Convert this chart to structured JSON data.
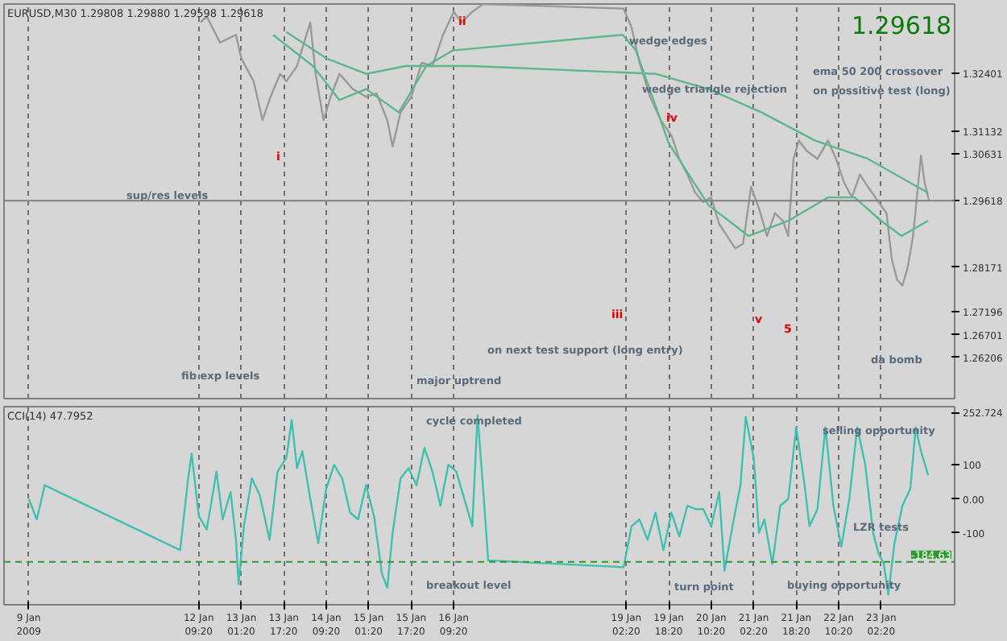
{
  "chart_data": [
    {
      "type": "line",
      "title": "EURUSD,M30  1.29808 1.29880 1.29598 1.29618",
      "xlim": [
        "2009-01-09T08:00",
        "2009-01-24T06:00"
      ],
      "ylim": [
        1.2531,
        1.339
      ],
      "xticks": [
        {
          "value": "2009-01-09T17:20",
          "label": null
        },
        {
          "value": "2009-01-12T09:20",
          "label": null
        },
        {
          "value": "2009-01-13T01:20",
          "label": null
        },
        {
          "value": "2009-01-13T17:20",
          "label": null
        },
        {
          "value": "2009-01-14T09:20",
          "label": null
        },
        {
          "value": "2009-01-15T01:20",
          "label": null
        },
        {
          "value": "2009-01-15T17:20",
          "label": null
        },
        {
          "value": "2009-01-16T09:20",
          "label": null
        },
        {
          "value": "2009-01-19T02:20",
          "label": null
        },
        {
          "value": "2009-01-19T18:20",
          "label": null
        },
        {
          "value": "2009-01-20T10:20",
          "label": null
        },
        {
          "value": "2009-01-21T02:20",
          "label": null
        },
        {
          "value": "2009-01-21T18:20",
          "label": null
        },
        {
          "value": "2009-01-22T10:20",
          "label": null
        },
        {
          "value": "2009-01-23T02:20",
          "label": null
        }
      ],
      "yticks": [
        1.32401,
        1.31132,
        1.30631,
        1.29618,
        1.28171,
        1.27196,
        1.26701,
        1.26206
      ],
      "tick_labels": "y",
      "grid": "x",
      "series": [
        {
          "color": "#9a9a9a",
          "x": [
            "2009-01-12T10:00",
            "2009-01-12T12:20",
            "2009-01-12T17:20",
            "2009-01-12T23:20",
            "2009-01-13T01:20",
            "2009-01-13T06:00",
            "2009-01-13T09:20",
            "2009-01-13T12:20",
            "2009-01-13T16:00",
            "2009-01-13T18:20",
            "2009-01-13T22:20",
            "2009-01-14T01:00",
            "2009-01-14T03:20",
            "2009-01-14T05:20",
            "2009-01-14T08:20",
            "2009-01-14T11:00",
            "2009-01-14T14:20",
            "2009-01-14T19:20",
            "2009-01-15T00:20",
            "2009-01-15T04:20",
            "2009-01-15T08:20",
            "2009-01-15T10:20",
            "2009-01-15T13:20",
            "2009-01-15T17:20",
            "2009-01-15T21:20",
            "2009-01-16T01:20",
            "2009-01-16T05:20",
            "2009-01-16T09:20",
            "2009-01-16T12:20",
            "2009-01-16T16:20",
            "2009-01-16T20:20",
            "2009-01-19T01:20",
            "2009-01-19T04:20",
            "2009-01-19T07:20",
            "2009-01-19T11:20",
            "2009-01-19T15:20",
            "2009-01-19T19:20",
            "2009-01-19T22:20",
            "2009-01-20T01:20",
            "2009-01-20T04:20",
            "2009-01-20T07:20",
            "2009-01-20T10:20",
            "2009-01-20T13:20",
            "2009-01-20T16:20",
            "2009-01-20T19:20",
            "2009-01-20T22:20",
            "2009-01-21T01:20",
            "2009-01-21T04:20",
            "2009-01-21T07:20",
            "2009-01-21T10:20",
            "2009-01-21T13:20",
            "2009-01-21T15:20",
            "2009-01-21T17:20",
            "2009-01-21T19:20",
            "2009-01-21T22:20",
            "2009-01-22T02:20",
            "2009-01-22T06:20",
            "2009-01-22T09:20",
            "2009-01-22T12:20",
            "2009-01-22T15:20",
            "2009-01-22T18:20",
            "2009-01-22T21:20",
            "2009-01-23T01:20",
            "2009-01-23T04:20",
            "2009-01-23T06:20",
            "2009-01-23T08:20",
            "2009-01-23T10:20",
            "2009-01-23T12:20",
            "2009-01-23T14:20",
            "2009-01-23T16:20",
            "2009-01-23T17:20",
            "2009-01-23T18:40",
            "2009-01-23T20:20"
          ],
          "values": [
            1.335,
            1.3363,
            1.3306,
            1.3323,
            1.3272,
            1.3222,
            1.3137,
            1.3188,
            1.3238,
            1.3222,
            1.3255,
            1.3306,
            1.335,
            1.3238,
            1.3137,
            1.3188,
            1.3238,
            1.3205,
            1.3188,
            1.3195,
            1.3137,
            1.308,
            1.3154,
            1.3188,
            1.3262,
            1.3255,
            1.3323,
            1.3373,
            1.335,
            1.3373,
            1.339,
            1.338,
            1.3339,
            1.3262,
            1.3188,
            1.3137,
            1.3104,
            1.3053,
            1.3019,
            1.2979,
            1.2959,
            1.2969,
            1.2911,
            1.2885,
            1.2858,
            1.2868,
            1.2992,
            1.2945,
            1.2885,
            1.2935,
            1.2918,
            1.2885,
            1.3053,
            1.3093,
            1.307,
            1.3053,
            1.3093,
            1.3053,
            1.3002,
            1.2969,
            1.3019,
            1.2992,
            1.2959,
            1.2935,
            1.2834,
            1.279,
            1.2777,
            1.2817,
            1.2885,
            1.3002,
            1.306,
            1.3002,
            1.2962
          ]
        },
        {
          "color": "#5cb88a",
          "x": [
            "2009-01-13T13:20",
            "2009-01-14T04:20",
            "2009-01-14T14:20",
            "2009-01-15T00:20",
            "2009-01-15T12:40",
            "2009-01-15T23:00",
            "2009-01-16T09:00",
            "2009-01-19T01:00",
            "2009-01-19T06:00",
            "2009-01-19T18:20",
            "2009-01-20T09:20",
            "2009-01-21T00:20",
            "2009-01-21T15:20",
            "2009-01-22T06:20",
            "2009-01-22T16:20",
            "2009-01-23T02:20",
            "2009-01-23T10:00",
            "2009-01-23T20:00"
          ],
          "values": [
            1.3323,
            1.3255,
            1.3181,
            1.3205,
            1.3154,
            1.3255,
            1.3289,
            1.3323,
            1.3289,
            1.3087,
            1.2952,
            1.2885,
            1.2918,
            1.2969,
            1.2969,
            1.2918,
            1.2885,
            1.2918
          ]
        },
        {
          "color": "#5cb88a",
          "x": [
            "2009-01-13T18:20",
            "2009-01-14T09:20",
            "2009-01-15T00:20",
            "2009-01-15T15:20",
            "2009-01-16T16:20",
            "2009-01-19T13:20",
            "2009-01-20T09:20",
            "2009-01-21T05:20",
            "2009-01-22T01:20",
            "2009-01-22T21:20",
            "2009-01-23T20:00"
          ],
          "values": [
            1.3329,
            1.3272,
            1.3238,
            1.3255,
            1.3255,
            1.3238,
            1.3205,
            1.3154,
            1.3093,
            1.3053,
            1.2979
          ]
        }
      ],
      "ref_lines": [
        {
          "axis": "y",
          "value": 1.29618,
          "color": "#808080"
        }
      ],
      "annotations": [
        "1.29618",
        "wedge edges",
        "wedge triangle rejection",
        "ema 50 200 crossover",
        "on possitive test (long)",
        "sup/res levels",
        "fib exp levels",
        "major uptrend",
        "on next test support (long entry)",
        "da bomb",
        "i",
        "ii",
        "iii",
        "iv",
        "v",
        "5"
      ]
    },
    {
      "type": "line",
      "title": "CCI(14) 47.7952",
      "xlim": [
        "2009-01-09T08:00",
        "2009-01-24T06:00"
      ],
      "ylim": [
        -310,
        270
      ],
      "xticks": [
        {
          "value": "2009-01-09T17:20",
          "label": "9 Jan 2009"
        },
        {
          "value": "2009-01-12T09:20",
          "label": "12 Jan 09:20"
        },
        {
          "value": "2009-01-13T01:20",
          "label": "13 Jan 01:20"
        },
        {
          "value": "2009-01-13T17:20",
          "label": "13 Jan 17:20"
        },
        {
          "value": "2009-01-14T09:20",
          "label": "14 Jan 09:20"
        },
        {
          "value": "2009-01-15T01:20",
          "label": "15 Jan 01:20"
        },
        {
          "value": "2009-01-15T17:20",
          "label": "15 Jan 17:20"
        },
        {
          "value": "2009-01-16T09:20",
          "label": "16 Jan 09:20"
        },
        {
          "value": "2009-01-19T02:20",
          "label": "19 Jan 02:20"
        },
        {
          "value": "2009-01-19T18:20",
          "label": "19 Jan 18:20"
        },
        {
          "value": "2009-01-20T10:20",
          "label": "20 Jan 10:20"
        },
        {
          "value": "2009-01-21T02:20",
          "label": "21 Jan 02:20"
        },
        {
          "value": "2009-01-21T18:20",
          "label": "21 Jan 18:20"
        },
        {
          "value": "2009-01-22T10:20",
          "label": "22 Jan 10:20"
        },
        {
          "value": "2009-01-23T02:20",
          "label": "23 Jan 02:20"
        }
      ],
      "yticks": [
        252.724,
        100,
        {
          "value": 0,
          "label": "0.00"
        },
        -100
      ],
      "grid": "x",
      "series": [
        {
          "color": "#40c0b0",
          "x": [
            "2009-01-09T17:20",
            "2009-01-09T20:20",
            "2009-01-09T23:20",
            "2009-01-12T02:20",
            "2009-01-12T05:20",
            "2009-01-12T06:40",
            "2009-01-12T09:20",
            "2009-01-12T12:20",
            "2009-01-12T16:00",
            "2009-01-12T18:20",
            "2009-01-12T21:20",
            "2009-01-12T23:20",
            "2009-01-13T00:20",
            "2009-01-13T02:20",
            "2009-01-13T05:20",
            "2009-01-13T08:20",
            "2009-01-13T12:00",
            "2009-01-13T15:00",
            "2009-01-13T18:20",
            "2009-01-13T20:20",
            "2009-01-13T22:20",
            "2009-01-14T00:20",
            "2009-01-14T03:20",
            "2009-01-14T06:20",
            "2009-01-14T09:20",
            "2009-01-14T12:20",
            "2009-01-14T15:20",
            "2009-01-14T18:20",
            "2009-01-14T21:20",
            "2009-01-15T00:20",
            "2009-01-15T03:20",
            "2009-01-15T06:20",
            "2009-01-15T08:20",
            "2009-01-15T10:20",
            "2009-01-15T13:20",
            "2009-01-15T16:20",
            "2009-01-15T19:20",
            "2009-01-15T22:20",
            "2009-01-16T01:20",
            "2009-01-16T04:20",
            "2009-01-16T07:20",
            "2009-01-16T10:20",
            "2009-01-16T16:20",
            "2009-01-16T18:20",
            "2009-01-16T20:20",
            "2009-01-16T22:20",
            "2009-01-19T01:20",
            "2009-01-19T04:20",
            "2009-01-19T07:20",
            "2009-01-19T10:20",
            "2009-01-19T13:20",
            "2009-01-19T16:20",
            "2009-01-19T19:20",
            "2009-01-19T22:20",
            "2009-01-20T01:20",
            "2009-01-20T04:20",
            "2009-01-20T07:20",
            "2009-01-20T10:20",
            "2009-01-20T13:20",
            "2009-01-20T15:20",
            "2009-01-20T18:20",
            "2009-01-20T21:20",
            "2009-01-20T23:20",
            "2009-01-21T02:20",
            "2009-01-21T04:20",
            "2009-01-21T06:20",
            "2009-01-21T09:20",
            "2009-01-21T12:20",
            "2009-01-21T15:20",
            "2009-01-21T18:20",
            "2009-01-21T21:20",
            "2009-01-21T23:20",
            "2009-01-22T02:20",
            "2009-01-22T05:20",
            "2009-01-22T08:20",
            "2009-01-22T11:20",
            "2009-01-22T14:20",
            "2009-01-22T17:20",
            "2009-01-22T20:20",
            "2009-01-22T23:20",
            "2009-01-23T01:20",
            "2009-01-23T03:20",
            "2009-01-23T05:00",
            "2009-01-23T07:20",
            "2009-01-23T10:20",
            "2009-01-23T13:20",
            "2009-01-23T15:20",
            "2009-01-23T17:20",
            "2009-01-23T20:00"
          ],
          "values": [
            0,
            -60,
            40,
            -150,
            60,
            133,
            -50,
            -90,
            80,
            -60,
            20,
            -120,
            -250,
            -80,
            60,
            10,
            -120,
            80,
            120,
            231,
            90,
            140,
            0,
            -130,
            30,
            100,
            60,
            -40,
            -60,
            40,
            -50,
            -220,
            -260,
            -100,
            60,
            90,
            40,
            150,
            80,
            -20,
            100,
            80,
            -80,
            245,
            40,
            -180,
            -200,
            -80,
            -60,
            -120,
            -40,
            -150,
            -40,
            -110,
            -20,
            -30,
            -30,
            -80,
            20,
            -210,
            -80,
            40,
            240,
            120,
            -100,
            -60,
            -190,
            -20,
            0,
            210,
            50,
            -80,
            -30,
            210,
            -20,
            -140,
            0,
            210,
            100,
            -100,
            -160,
            -190,
            -280,
            -130,
            -20,
            30,
            210,
            140,
            70
          ]
        }
      ],
      "ref_lines": [
        {
          "axis": "y",
          "value": -184.63,
          "label": "-184.63",
          "color": "#2e9a2e",
          "line_style": "dashed"
        }
      ],
      "annotations": [
        "cycle completed",
        "selling opportunity",
        "LZR tests",
        "breakout level",
        "turn point",
        "buying opportunity"
      ]
    }
  ]
}
